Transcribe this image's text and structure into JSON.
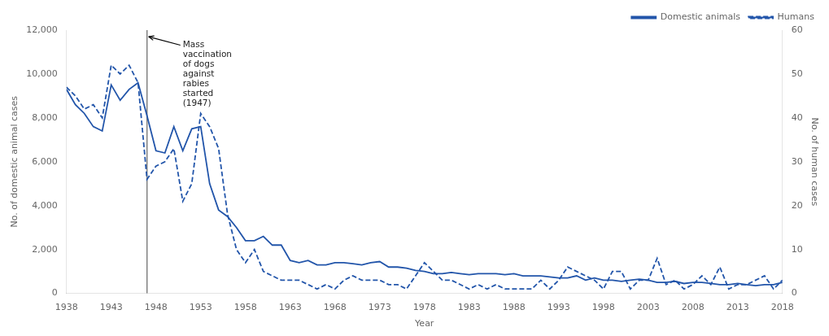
{
  "chart_data": {
    "type": "line",
    "x": [
      1938,
      1939,
      1940,
      1941,
      1942,
      1943,
      1944,
      1945,
      1946,
      1947,
      1948,
      1949,
      1950,
      1951,
      1952,
      1953,
      1954,
      1955,
      1956,
      1957,
      1958,
      1959,
      1960,
      1961,
      1962,
      1963,
      1964,
      1965,
      1966,
      1967,
      1968,
      1969,
      1970,
      1971,
      1972,
      1973,
      1974,
      1975,
      1976,
      1977,
      1978,
      1979,
      1980,
      1981,
      1982,
      1983,
      1984,
      1985,
      1986,
      1987,
      1988,
      1989,
      1990,
      1991,
      1992,
      1993,
      1994,
      1995,
      1996,
      1997,
      1998,
      1999,
      2000,
      2001,
      2002,
      2003,
      2004,
      2005,
      2006,
      2007,
      2008,
      2009,
      2010,
      2011,
      2012,
      2013,
      2014,
      2015,
      2016,
      2017,
      2018
    ],
    "series": [
      {
        "name": "Domestic animals",
        "color": "#2255aa",
        "line_style": "solid",
        "values": [
          9300,
          8600,
          8200,
          7600,
          7400,
          9500,
          8800,
          9300,
          9600,
          8100,
          6500,
          6400,
          7600,
          6500,
          7500,
          7600,
          5000,
          3800,
          3500,
          3000,
          2400,
          2400,
          2600,
          2200,
          2200,
          1500,
          1400,
          1500,
          1300,
          1300,
          1400,
          1400,
          1350,
          1300,
          1400,
          1450,
          1200,
          1200,
          1150,
          1050,
          1000,
          900,
          900,
          950,
          900,
          850,
          900,
          900,
          900,
          850,
          900,
          800,
          800,
          800,
          750,
          700,
          700,
          800,
          600,
          700,
          600,
          600,
          550,
          600,
          650,
          600,
          500,
          500,
          550,
          450,
          500,
          500,
          450,
          400,
          400,
          450,
          400,
          350,
          400,
          400,
          500
        ]
      },
      {
        "name": "Humans",
        "color": "#2255aa",
        "line_style": "dashed",
        "axis": "y2",
        "values": [
          47,
          45,
          42,
          43,
          40,
          52,
          50,
          52,
          48,
          26,
          29,
          30,
          33,
          21,
          25,
          41,
          38,
          33,
          18,
          10,
          7,
          10,
          5,
          4,
          3,
          3,
          3,
          2,
          1,
          2,
          1,
          3,
          4,
          3,
          3,
          3,
          2,
          2,
          1,
          4,
          7,
          5,
          3,
          3,
          2,
          1,
          2,
          1,
          2,
          1,
          1,
          1,
          1,
          3,
          1,
          3,
          6,
          5,
          4,
          3,
          1,
          5,
          5,
          1,
          3,
          3,
          8,
          2,
          3,
          1,
          2,
          4,
          2,
          6,
          1,
          2,
          2,
          3,
          4,
          1,
          3
        ]
      }
    ],
    "xlabel": "Year",
    "ylabel": "No. of domestic animal cases",
    "y2label": "No. of human cases",
    "xlim": [
      1938,
      2018
    ],
    "xticks": [
      1938,
      1943,
      1948,
      1953,
      1958,
      1963,
      1968,
      1973,
      1978,
      1983,
      1988,
      1993,
      1998,
      2003,
      2008,
      2013,
      2018
    ],
    "ylim": [
      0,
      12000
    ],
    "yticks": [
      0,
      {
        "value": 2000,
        "label": "2,000"
      },
      {
        "value": 4000,
        "label": "4,000"
      },
      {
        "value": 6000,
        "label": "6,000"
      },
      {
        "value": 8000,
        "label": "8,000"
      },
      {
        "value": 10000,
        "label": "10,000"
      },
      {
        "value": 12000,
        "label": "12,000"
      }
    ],
    "y2lim": [
      0,
      60
    ],
    "y2ticks": [
      0,
      10,
      20,
      30,
      40,
      50,
      60
    ],
    "annotations": [
      {
        "text": "Mass\nvaccination\nof dogs\nagainst\nrabies\nstarted\n(1947)",
        "x": 1947,
        "y": 11700,
        "text_x": 1951,
        "text_y": 11500
      }
    ],
    "legend": "upper right",
    "grid": false
  }
}
